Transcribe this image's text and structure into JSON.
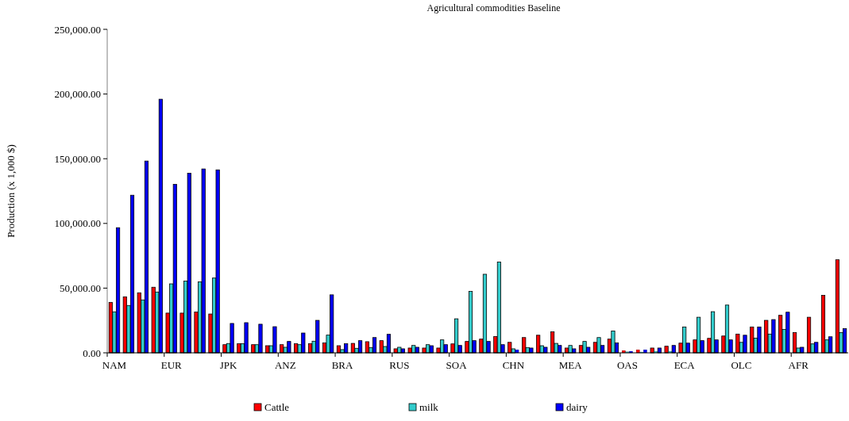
{
  "chart_data": {
    "type": "bar",
    "title": "Agricultural commodities Baseline",
    "ylabel": "Production (x 1,000 $)",
    "categories": [
      "NAM",
      null,
      null,
      null,
      "EUR",
      null,
      null,
      null,
      "JPK",
      null,
      null,
      null,
      "ANZ",
      null,
      null,
      null,
      "BRA",
      null,
      null,
      null,
      "RUS",
      null,
      null,
      null,
      "SOA",
      null,
      null,
      null,
      "CHN",
      null,
      null,
      null,
      "MEA",
      null,
      null,
      null,
      "OAS",
      null,
      null,
      null,
      "ECA",
      null,
      null,
      null,
      "OLC",
      null,
      null,
      null,
      "AFR",
      null,
      null,
      null
    ],
    "series": [
      {
        "name": "Cattle",
        "color": "#ff0000",
        "values": [
          39000,
          43300,
          46400,
          50700,
          30700,
          30700,
          31500,
          30000,
          6300,
          7000,
          6300,
          5500,
          6300,
          7000,
          7000,
          7600,
          5500,
          7300,
          8600,
          9400,
          3100,
          3700,
          3700,
          3700,
          6900,
          8800,
          10600,
          12600,
          8100,
          11800,
          13600,
          16300,
          3700,
          5700,
          8100,
          10600,
          1800,
          2400,
          3700,
          5100,
          7500,
          10000,
          11200,
          13000,
          14500,
          20000,
          25100,
          29000,
          15700,
          27500,
          44400,
          71900
        ]
      },
      {
        "name": "milk",
        "color": "#33cccc",
        "values": [
          31700,
          36600,
          40900,
          47000,
          53300,
          55400,
          54800,
          57800,
          7200,
          7000,
          6300,
          5500,
          4300,
          6300,
          9000,
          13700,
          2500,
          3500,
          4100,
          4900,
          4300,
          5700,
          6300,
          10000,
          26300,
          47500,
          60700,
          70100,
          3100,
          4100,
          5500,
          7300,
          5700,
          8800,
          11800,
          16900,
          800,
          600,
          1200,
          1200,
          20000,
          27500,
          31800,
          36900,
          8100,
          11400,
          14500,
          18100,
          3700,
          6900,
          10000,
          15700
        ]
      },
      {
        "name": "dairy",
        "color": "#0000ff",
        "values": [
          96700,
          121800,
          148200,
          196000,
          130200,
          138800,
          142100,
          141400,
          22700,
          23300,
          22100,
          20200,
          8800,
          15300,
          25100,
          44800,
          7000,
          9400,
          11800,
          14300,
          3100,
          4300,
          5500,
          6300,
          5700,
          9400,
          8800,
          6300,
          2400,
          3700,
          4300,
          5700,
          3100,
          4300,
          5700,
          7700,
          1200,
          2400,
          3700,
          5700,
          7500,
          9400,
          10000,
          10000,
          13600,
          20000,
          25700,
          31400,
          4300,
          8100,
          12400,
          18700
        ]
      }
    ],
    "ylim": [
      0,
      250000
    ],
    "yticks": [
      {
        "value": 0,
        "label": "0.00"
      },
      {
        "value": 50000,
        "label": "50,000.00"
      },
      {
        "value": 100000,
        "label": "100,000.00"
      },
      {
        "value": 150000,
        "label": "150,000.00"
      },
      {
        "value": 200000,
        "label": "200,000.00"
      },
      {
        "value": 250000,
        "label": "250,000.00"
      }
    ],
    "grid": false,
    "legend": "bottom"
  }
}
